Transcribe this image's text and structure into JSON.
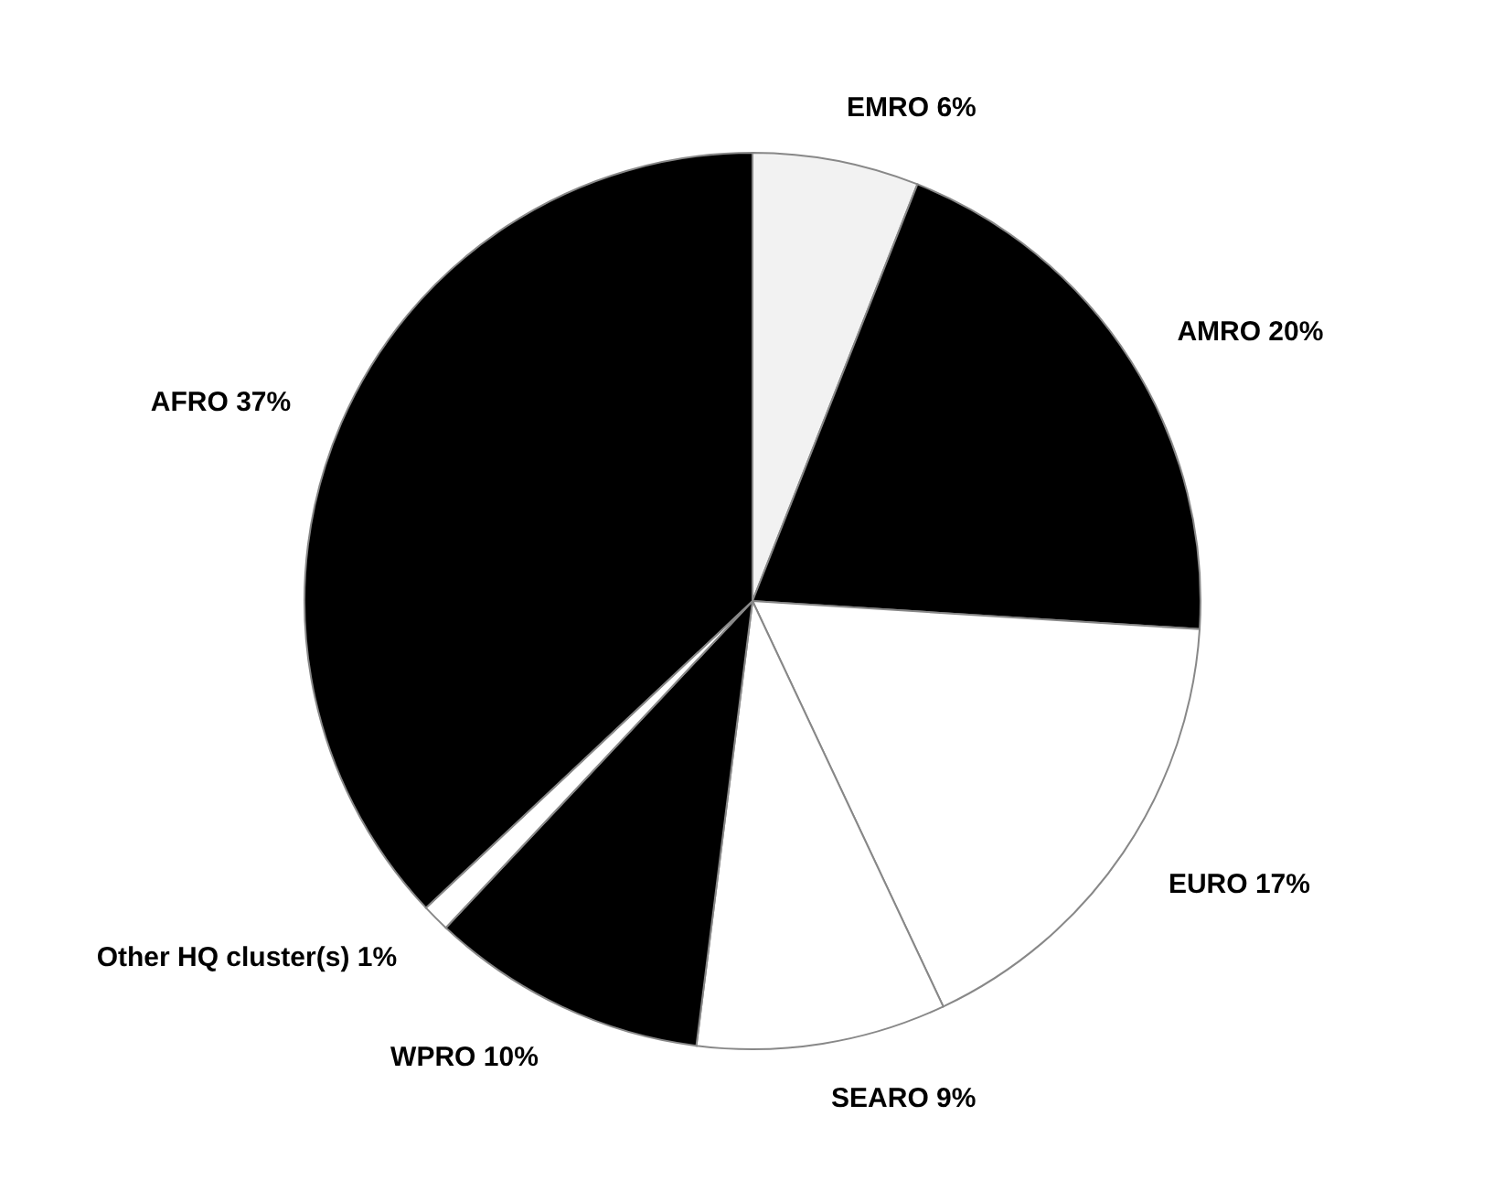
{
  "chart_data": {
    "type": "pie",
    "categories": [
      "EMRO",
      "AMRO",
      "EURO",
      "SEARO",
      "WPRO",
      "Other HQ cluster(s)",
      "AFRO"
    ],
    "values": [
      6,
      20,
      17,
      9,
      10,
      1,
      37
    ],
    "value_labels": [
      "6%",
      "20%",
      "17%",
      "9%",
      "10%",
      "1%",
      "37%"
    ],
    "colors": [
      "#f2f2f2",
      "#000000",
      "#ffffff",
      "#ffffff",
      "#000000",
      "#ffffff",
      "#000000"
    ]
  }
}
